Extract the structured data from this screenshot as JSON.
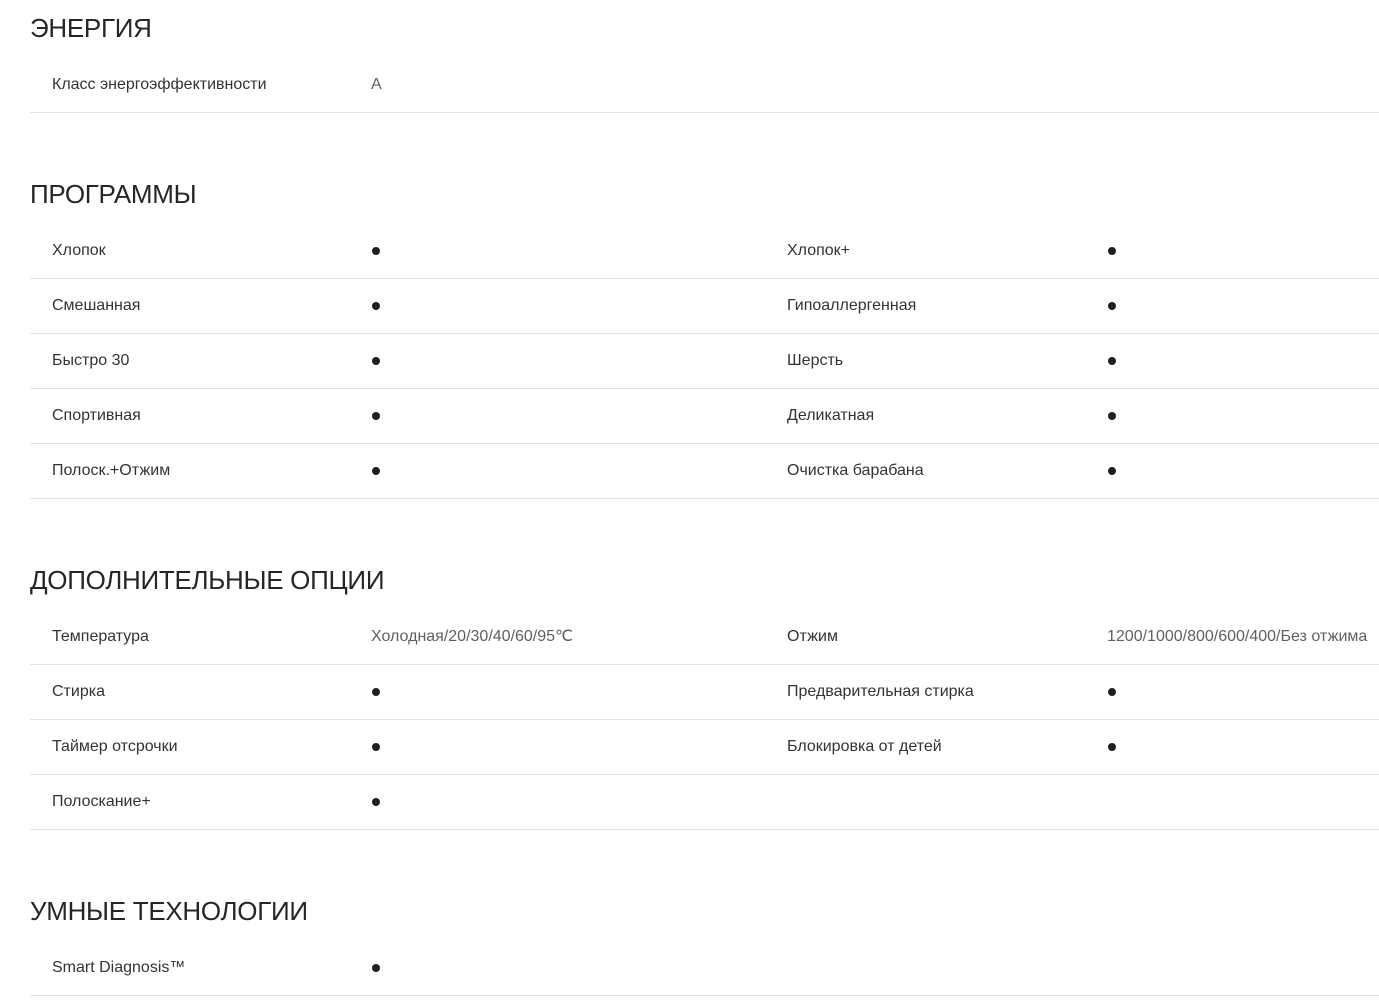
{
  "page": {
    "background": "#ffffff"
  },
  "colors": {
    "heading": "#262626",
    "label": "#333333",
    "value": "#5f5f5f",
    "divider": "#e2e2e2",
    "dot": "#1f1f1f"
  },
  "dot_marker": "•",
  "sections": [
    {
      "id": "energy",
      "title": "ЭНЕРГИЯ",
      "rows": [
        {
          "left": {
            "label": "Класс энергоэффективности",
            "value": "A"
          },
          "right": null
        }
      ]
    },
    {
      "id": "programs",
      "title": "ПРОГРАММЫ",
      "rows": [
        {
          "left": {
            "label": "Хлопок",
            "value": "•"
          },
          "right": {
            "label": "Хлопок+",
            "value": "•"
          }
        },
        {
          "left": {
            "label": "Смешанная",
            "value": "•"
          },
          "right": {
            "label": "Гипоаллергенная",
            "value": "•"
          }
        },
        {
          "left": {
            "label": "Быстро 30",
            "value": "•"
          },
          "right": {
            "label": "Шерсть",
            "value": "•"
          }
        },
        {
          "left": {
            "label": "Спортивная",
            "value": "•"
          },
          "right": {
            "label": "Деликатная",
            "value": "•"
          }
        },
        {
          "left": {
            "label": "Полоск.+Отжим",
            "value": "•"
          },
          "right": {
            "label": "Очистка барабана",
            "value": "•"
          }
        }
      ]
    },
    {
      "id": "extra-options",
      "title": "ДОПОЛНИТЕЛЬНЫЕ ОПЦИИ",
      "rows": [
        {
          "left": {
            "label": "Температура",
            "value": "Холодная/20/30/40/60/95℃"
          },
          "right": {
            "label": "Отжим",
            "value": "1200/1000/800/600/400/Без отжима"
          }
        },
        {
          "left": {
            "label": "Стирка",
            "value": "•"
          },
          "right": {
            "label": "Предварительная стирка",
            "value": "•"
          }
        },
        {
          "left": {
            "label": "Таймер отсрочки",
            "value": "•"
          },
          "right": {
            "label": "Блокировка от детей",
            "value": "•"
          }
        },
        {
          "left": {
            "label": "Полоскание+",
            "value": "•"
          },
          "right": null
        }
      ]
    },
    {
      "id": "smart-tech",
      "title": "УМНЫЕ ТЕХНОЛОГИИ",
      "rows": [
        {
          "left": {
            "label": "Smart Diagnosis™",
            "value": "•"
          },
          "right": null
        }
      ]
    }
  ]
}
